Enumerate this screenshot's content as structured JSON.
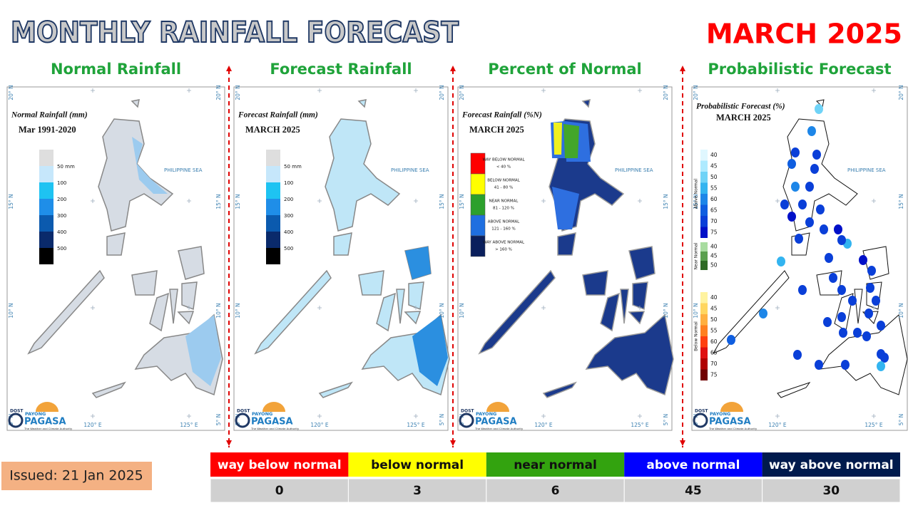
{
  "header": {
    "title": "MONTHLY RAINFALL FORECAST",
    "month": "MARCH 2025"
  },
  "panels": [
    {
      "title": "Normal Rainfall",
      "map_title": "Normal Rainfall (mm)",
      "map_subtitle": "Mar 1991-2020",
      "legend": [
        "50 mm",
        "100",
        "200",
        "300",
        "400",
        "500"
      ]
    },
    {
      "title": "Forecast Rainfall",
      "map_title": "Forecast Rainfall (mm)",
      "map_subtitle": "MARCH 2025",
      "legend": [
        "50 mm",
        "100",
        "200",
        "300",
        "400",
        "500"
      ]
    },
    {
      "title": "Percent of Normal",
      "map_title": "Forecast Rainfall (%N)",
      "map_subtitle": "MARCH 2025",
      "legend": [
        {
          "name": "WAY BELOW NORMAL",
          "range": "< 40 %"
        },
        {
          "name": "BELOW NORMAL",
          "range": "41 - 80 %"
        },
        {
          "name": "NEAR NORMAL",
          "range": "81 - 120 %"
        },
        {
          "name": "ABOVE NORMAL",
          "range": "121 - 160 %"
        },
        {
          "name": "WAY ABOVE NORMAL",
          "range": "> 160 %"
        }
      ]
    },
    {
      "title": "Probabilistic Forecast",
      "map_title": "Probabilistic Forecast (%)",
      "map_subtitle": "MARCH 2025",
      "legend": [
        {
          "name": "Above Normal",
          "levels": [
            "40",
            "45",
            "50",
            "55",
            "60",
            "65",
            "70",
            "75"
          ]
        },
        {
          "name": "Near Normal",
          "levels": [
            "40",
            "45",
            "50"
          ]
        },
        {
          "name": "Below Normal",
          "levels": [
            "40",
            "45",
            "50",
            "55",
            "60",
            "65",
            "70",
            "75"
          ]
        }
      ]
    }
  ],
  "map_labels": {
    "sea": "PHILIPPINE SEA",
    "lat": [
      "20° N",
      "15° N",
      "10° N",
      "5° N"
    ],
    "lon": [
      "120° E",
      "125° E"
    ]
  },
  "logo": {
    "dost": "DOST",
    "payong": "PAYONG",
    "pagasa": "PAGASA",
    "tagline": "The Weather and Climate Authority"
  },
  "summary": {
    "categories": [
      "way below normal",
      "below normal",
      "near normal",
      "above normal",
      "way above normal"
    ],
    "counts": [
      "0",
      "3",
      "6",
      "45",
      "30"
    ]
  },
  "issued": "Issued: 21 Jan 2025"
}
